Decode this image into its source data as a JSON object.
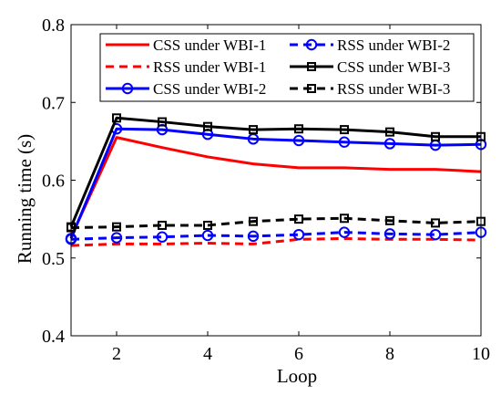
{
  "chart_data": {
    "type": "line",
    "xlabel": "Loop",
    "ylabel": "Running time (s)",
    "xlim": [
      1,
      10
    ],
    "ylim": [
      0.4,
      0.8
    ],
    "xticks": [
      2,
      4,
      6,
      8,
      10
    ],
    "yticks": [
      0.4,
      0.5,
      0.6,
      0.7,
      0.8
    ],
    "xtick_labels": [
      "2",
      "4",
      "6",
      "8",
      "10"
    ],
    "ytick_labels": [
      "0.4",
      "0.5",
      "0.6",
      "0.7",
      "0.8"
    ],
    "grid": false,
    "legend_position": "top-right",
    "x": [
      1,
      2,
      3,
      4,
      5,
      6,
      7,
      8,
      9,
      10
    ],
    "series": [
      {
        "name": "CSS under WBI-1",
        "color": "#ff0000",
        "line_style": "solid",
        "marker": "none",
        "values": [
          0.527,
          0.655,
          0.642,
          0.63,
          0.621,
          0.616,
          0.616,
          0.614,
          0.614,
          0.611
        ]
      },
      {
        "name": "RSS under WBI-1",
        "color": "#ff0000",
        "line_style": "dashed",
        "marker": "none",
        "values": [
          0.516,
          0.518,
          0.518,
          0.519,
          0.518,
          0.524,
          0.525,
          0.524,
          0.524,
          0.523
        ]
      },
      {
        "name": "CSS under WBI-2",
        "color": "#0000ff",
        "line_style": "solid",
        "marker": "circle",
        "values": [
          0.525,
          0.666,
          0.665,
          0.659,
          0.653,
          0.651,
          0.649,
          0.647,
          0.645,
          0.646
        ]
      },
      {
        "name": "RSS under WBI-2",
        "color": "#0000ff",
        "line_style": "dashed",
        "marker": "circle",
        "values": [
          0.524,
          0.526,
          0.527,
          0.529,
          0.528,
          0.53,
          0.533,
          0.531,
          0.53,
          0.533
        ]
      },
      {
        "name": "CSS under WBI-3",
        "color": "#000000",
        "line_style": "solid",
        "marker": "square",
        "values": [
          0.54,
          0.68,
          0.675,
          0.669,
          0.665,
          0.666,
          0.665,
          0.662,
          0.656,
          0.656
        ]
      },
      {
        "name": "RSS under WBI-3",
        "color": "#000000",
        "line_style": "dashed",
        "marker": "square",
        "values": [
          0.539,
          0.54,
          0.542,
          0.542,
          0.547,
          0.55,
          0.551,
          0.548,
          0.545,
          0.547
        ]
      }
    ]
  }
}
